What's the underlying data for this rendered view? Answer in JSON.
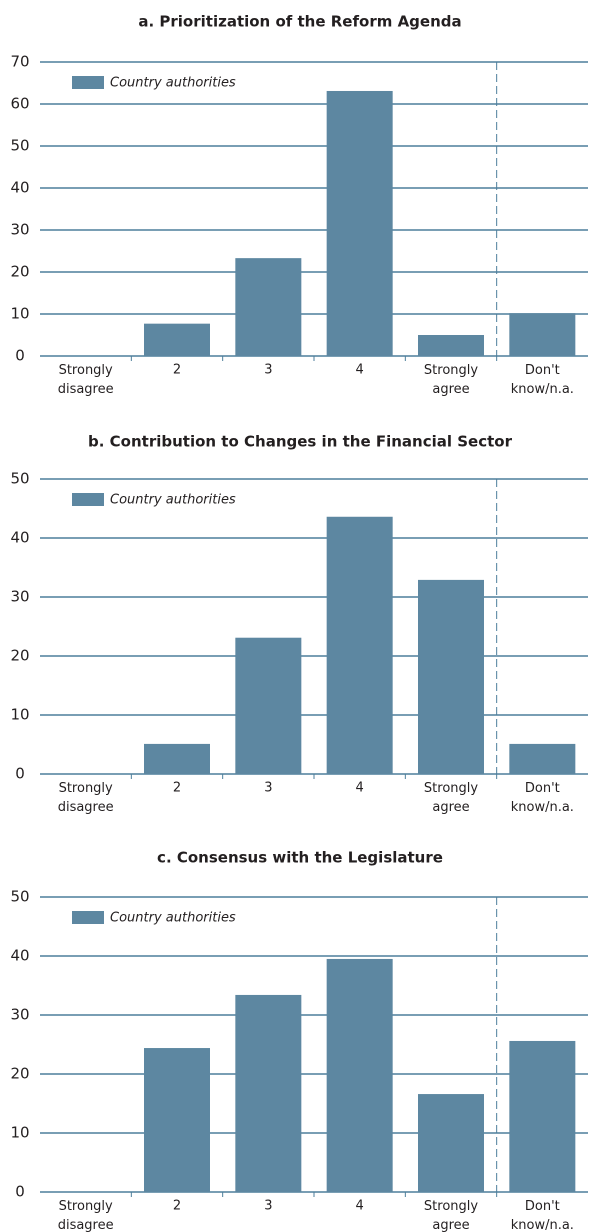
{
  "chart_data": [
    {
      "type": "bar",
      "title": "a. Prioritization of the Reform Agenda",
      "categories": [
        "Strongly disagree",
        "2",
        "3",
        "4",
        "Strongly agree",
        "Don't know/n.a."
      ],
      "series": [
        {
          "name": "Country authorities",
          "color": "#5d87a1",
          "values": [
            0,
            7.7,
            23.3,
            63.1,
            5.0,
            10.2
          ]
        }
      ],
      "ylim": [
        0,
        70
      ],
      "yticks": [
        0,
        10,
        20,
        30,
        40,
        50,
        60,
        70
      ],
      "grid": true
    },
    {
      "type": "bar",
      "title": "b. Contribution to Changes in the Financial Sector",
      "categories": [
        "Strongly disagree",
        "2",
        "3",
        "4",
        "Strongly agree",
        "Don't know/n.a."
      ],
      "series": [
        {
          "name": "Country authorities",
          "color": "#5d87a1",
          "values": [
            0,
            5.1,
            23.1,
            43.6,
            32.9,
            5.1
          ]
        }
      ],
      "ylim": [
        0,
        50
      ],
      "yticks": [
        0,
        10,
        20,
        30,
        40,
        50
      ],
      "grid": true
    },
    {
      "type": "bar",
      "title": "c. Consensus with the Legislature",
      "categories": [
        "Strongly disagree",
        "2",
        "3",
        "4",
        "Strongly agree",
        "Don't know/n.a."
      ],
      "series": [
        {
          "name": "Country authorities",
          "color": "#5d87a1",
          "values": [
            0,
            24.4,
            33.4,
            39.5,
            16.6,
            25.6
          ]
        }
      ],
      "ylim": [
        0,
        50
      ],
      "yticks": [
        0,
        10,
        20,
        30,
        40,
        50
      ],
      "grid": true
    }
  ]
}
